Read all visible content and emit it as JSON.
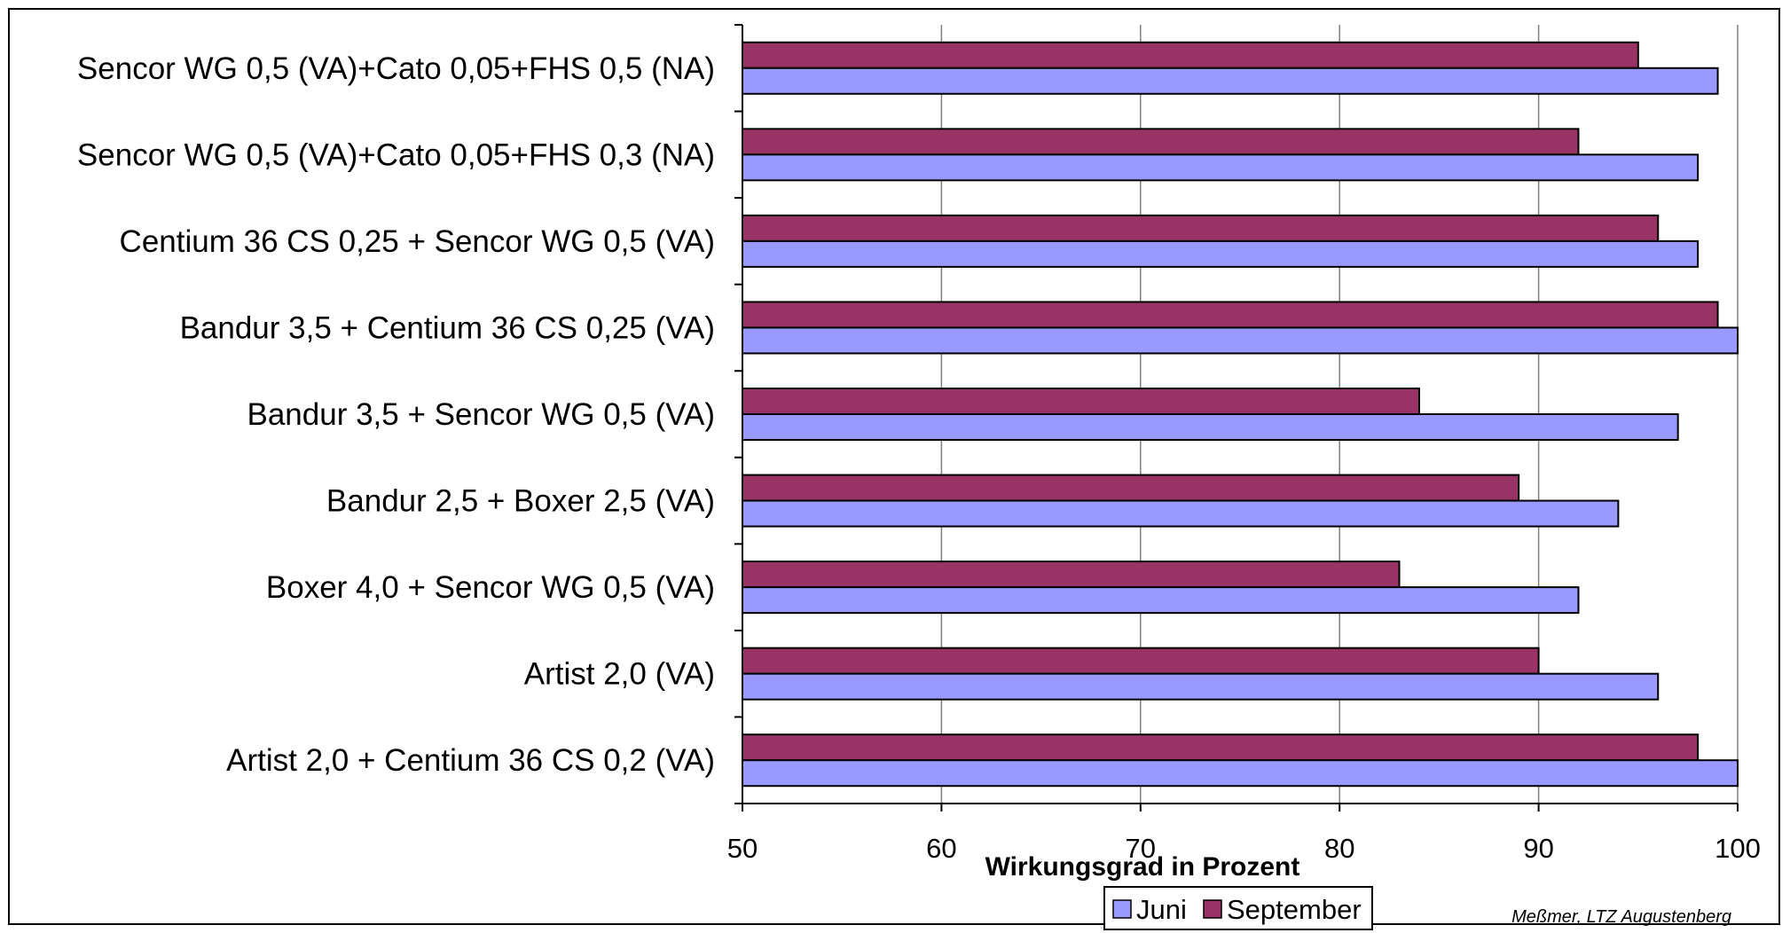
{
  "chart_data": {
    "type": "bar",
    "orientation": "horizontal",
    "categories": [
      "Sencor WG 0,5 (VA)+Cato 0,05+FHS 0,5 (NA)",
      "Sencor WG 0,5 (VA)+Cato 0,05+FHS 0,3 (NA)",
      "Centium 36 CS 0,25 + Sencor WG 0,5 (VA)",
      "Bandur 3,5 + Centium 36 CS 0,25 (VA)",
      "Bandur 3,5 + Sencor WG 0,5 (VA)",
      "Bandur 2,5 + Boxer 2,5 (VA)",
      "Boxer 4,0 + Sencor WG 0,5 (VA)",
      "Artist 2,0 (VA)",
      "Artist  2,0 + Centium 36 CS 0,2 (VA)"
    ],
    "series": [
      {
        "name": "September",
        "color": "#993366",
        "values": [
          95,
          92,
          96,
          99,
          84,
          89,
          83,
          90,
          98
        ]
      },
      {
        "name": "Juni",
        "color": "#9999ff",
        "values": [
          99,
          98,
          98,
          100,
          97,
          94,
          92,
          96,
          100
        ]
      }
    ],
    "legend_order": [
      "Juni",
      "September"
    ],
    "xlim": [
      50,
      100
    ],
    "xticks": [
      50,
      60,
      70,
      80,
      90,
      100
    ],
    "xlabel": "Wirkungsgrad in Prozent",
    "ylabel": "",
    "grid": "vertical",
    "legend_position": "bottom"
  },
  "credit": "Meßmer, LTZ Augustenberg"
}
